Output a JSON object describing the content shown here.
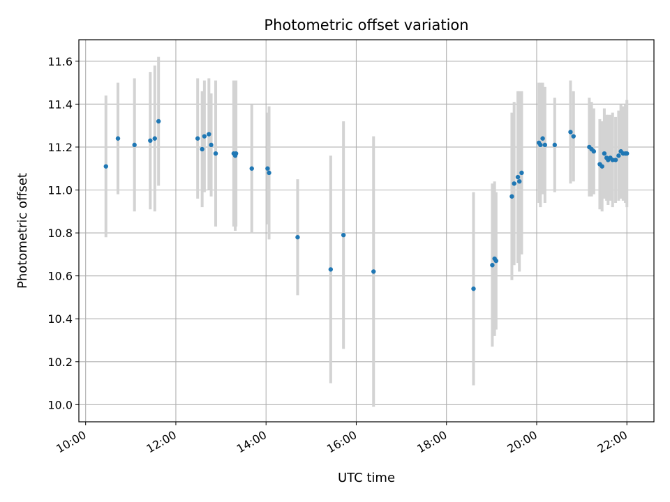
{
  "chart_data": {
    "type": "scatter",
    "title": "Photometric offset variation",
    "xlabel": "UTC time",
    "ylabel": "Photometric offset",
    "xlim": [
      "09:51",
      "22:36"
    ],
    "ylim": [
      9.92,
      11.7
    ],
    "grid": true,
    "x_ticks": [
      "10:00",
      "12:00",
      "14:00",
      "16:00",
      "18:00",
      "20:00",
      "22:00"
    ],
    "y_ticks": [
      10.0,
      10.2,
      10.4,
      10.6,
      10.8,
      11.0,
      11.2,
      11.4,
      11.6
    ],
    "colors": {
      "marker": "#1f77b4",
      "errorbar": "#d3d3d3",
      "grid": "#b0b0b0"
    },
    "series": [
      {
        "x": [
          "10:27",
          "10:43",
          "11:05",
          "11:26",
          "11:32",
          "11:37",
          "12:29",
          "12:35",
          "12:38",
          "12:44",
          "12:47",
          "12:53",
          "13:17",
          "13:19",
          "13:20",
          "13:41",
          "14:02",
          "14:04",
          "14:42",
          "15:26",
          "15:43",
          "16:23",
          "18:36",
          "19:01",
          "19:04",
          "19:06",
          "19:27",
          "19:30",
          "19:35",
          "19:37",
          "19:40",
          "20:03",
          "20:05",
          "20:08",
          "20:11",
          "20:24",
          "20:45",
          "20:49",
          "21:10",
          "21:13",
          "21:16",
          "21:24",
          "21:27",
          "21:30",
          "21:33",
          "21:35",
          "21:38",
          "21:41",
          "21:45",
          "21:49",
          "21:52",
          "21:55",
          "21:58",
          "22:00"
        ],
        "y": [
          11.11,
          11.24,
          11.21,
          11.23,
          11.24,
          11.32,
          11.24,
          11.19,
          11.25,
          11.26,
          11.21,
          11.17,
          11.17,
          11.16,
          11.17,
          11.1,
          11.1,
          11.08,
          10.78,
          10.63,
          10.79,
          10.62,
          10.54,
          10.65,
          10.68,
          10.67,
          10.97,
          11.03,
          11.06,
          11.04,
          11.08,
          11.22,
          11.21,
          11.24,
          11.21,
          11.21,
          11.27,
          11.25,
          11.2,
          11.19,
          11.18,
          11.12,
          11.11,
          11.17,
          11.15,
          11.14,
          11.15,
          11.14,
          11.14,
          11.16,
          11.18,
          11.17,
          11.17,
          11.17
        ],
        "yerr": [
          0.33,
          0.26,
          0.31,
          0.32,
          0.34,
          0.3,
          0.28,
          0.27,
          0.26,
          0.26,
          0.24,
          0.34,
          0.34,
          0.35,
          0.34,
          0.3,
          0.26,
          0.31,
          0.27,
          0.53,
          0.53,
          0.63,
          0.45,
          0.38,
          0.36,
          0.32,
          0.39,
          0.38,
          0.4,
          0.42,
          0.38,
          0.28,
          0.29,
          0.26,
          0.27,
          0.22,
          0.24,
          0.21,
          0.23,
          0.22,
          0.2,
          0.21,
          0.21,
          0.21,
          0.2,
          0.21,
          0.2,
          0.22,
          0.2,
          0.21,
          0.22,
          0.22,
          0.23,
          0.25
        ]
      }
    ]
  }
}
